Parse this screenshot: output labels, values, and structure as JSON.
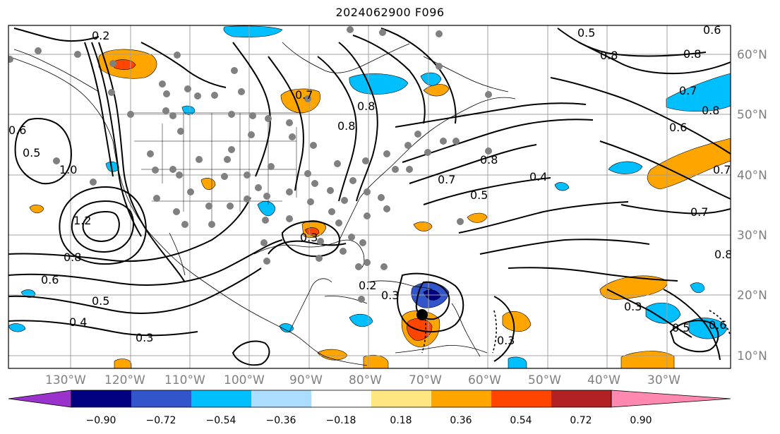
{
  "title": "2024062900 F096",
  "map": {
    "lon_labels": [
      "130°W",
      "120°W",
      "110°W",
      "100°W",
      "90°W",
      "80°W",
      "70°W",
      "60°W",
      "50°W",
      "40°W",
      "30°W"
    ],
    "lat_labels": [
      "60°N",
      "50°N",
      "40°N",
      "30°N",
      "20°N",
      "10°N"
    ],
    "contour_labels": [
      "0.2",
      "0.6",
      "0.5",
      "0.8",
      "0.8",
      "0.7",
      "0.8",
      "0.6",
      "0.7",
      "0.6",
      "0.5",
      "1.0",
      "0.8",
      "0.7",
      "0.5",
      "0.4",
      "1.2",
      "0.8",
      "0.6",
      "0.5",
      "0.4",
      "0.3",
      "0.3",
      "0.2",
      "0.3",
      "0.3",
      "0.5",
      "0.6",
      "0.8",
      "0.7",
      "0.7",
      "0.3",
      "0.8",
      "0.8"
    ]
  },
  "colorbar": {
    "ticks": [
      "−0.90",
      "−0.72",
      "−0.54",
      "−0.36",
      "−0.18",
      "0.18",
      "0.36",
      "0.54",
      "0.72",
      "0.90"
    ],
    "colors": [
      "#9933cc",
      "#000080",
      "#3355cc",
      "#00bfff",
      "#aaddff",
      "#ffffff",
      "#ffe680",
      "#ffa500",
      "#ff4500",
      "#b22222",
      "#ff88b0"
    ]
  },
  "colors": {
    "positive_fill": "#ffa500",
    "strong_positive_fill": "#ff4500",
    "negative_fill": "#00bfff",
    "strong_negative_fill": "#3355cc",
    "station_dot": "#808080",
    "grid": "#a0a0a0"
  }
}
